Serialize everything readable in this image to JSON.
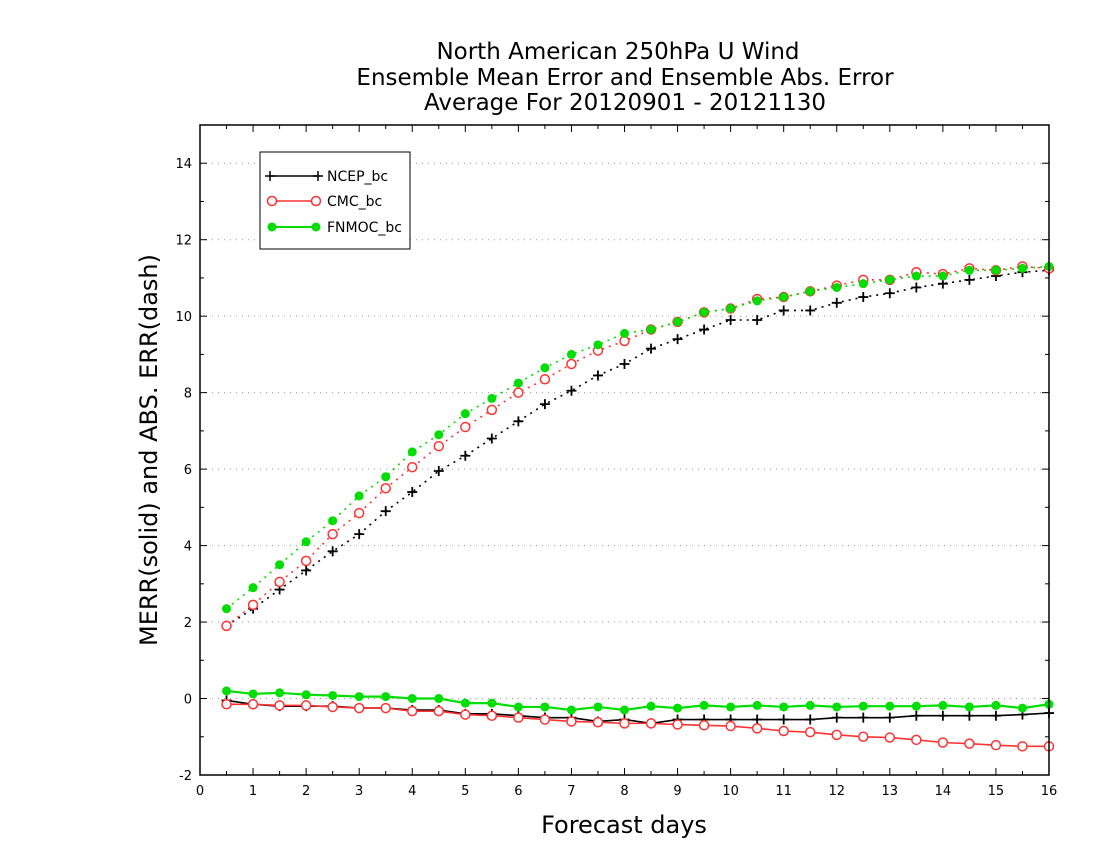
{
  "chart_data": {
    "type": "line",
    "title": [
      "North American 250hPa U Wind",
      "Ensemble Mean Error and Ensemble Abs. Error",
      "Average For 20120901 - 20121130"
    ],
    "xlabel": "Forecast days",
    "ylabel": "MERR(solid) and ABS. ERR(dash)",
    "xlim": [
      0,
      16
    ],
    "ylim": [
      -2,
      15
    ],
    "xticks": [
      "0",
      "1",
      "2",
      "3",
      "4",
      "5",
      "6",
      "7",
      "8",
      "9",
      "10",
      "11",
      "12",
      "13",
      "14",
      "15",
      "16"
    ],
    "yticks": [
      "-2",
      "0",
      "2",
      "4",
      "6",
      "8",
      "10",
      "12",
      "14"
    ],
    "grid": true,
    "legend_position": "top-left",
    "x": [
      0.5,
      1,
      1.5,
      2,
      2.5,
      3,
      3.5,
      4,
      4.5,
      5,
      5.5,
      6,
      6.5,
      7,
      7.5,
      8,
      8.5,
      9,
      9.5,
      10,
      10.5,
      11,
      11.5,
      12,
      12.5,
      13,
      13.5,
      14,
      14.5,
      15,
      15.5,
      16
    ],
    "series": [
      {
        "name": "NCEP_bc",
        "color": "#000000",
        "marker": "plus",
        "merr": [
          -0.05,
          -0.15,
          -0.2,
          -0.2,
          -0.2,
          -0.25,
          -0.25,
          -0.3,
          -0.3,
          -0.4,
          -0.4,
          -0.45,
          -0.5,
          -0.5,
          -0.6,
          -0.55,
          -0.65,
          -0.55,
          -0.55,
          -0.55,
          -0.55,
          -0.55,
          -0.55,
          -0.5,
          -0.5,
          -0.5,
          -0.45,
          -0.45,
          -0.45,
          -0.45,
          -0.42,
          -0.38
        ],
        "abs_err": [
          1.9,
          2.35,
          2.85,
          3.35,
          3.85,
          4.3,
          4.9,
          5.4,
          5.95,
          6.35,
          6.8,
          7.25,
          7.7,
          8.05,
          8.45,
          8.75,
          9.15,
          9.4,
          9.65,
          9.9,
          9.9,
          10.15,
          10.15,
          10.35,
          10.5,
          10.6,
          10.75,
          10.85,
          10.95,
          11.05,
          11.15,
          11.2
        ]
      },
      {
        "name": "CMC_bc",
        "color": "#ff3333",
        "marker": "open-circle",
        "merr": [
          -0.15,
          -0.15,
          -0.18,
          -0.18,
          -0.22,
          -0.25,
          -0.25,
          -0.33,
          -0.33,
          -0.42,
          -0.45,
          -0.5,
          -0.55,
          -0.6,
          -0.62,
          -0.65,
          -0.65,
          -0.68,
          -0.7,
          -0.72,
          -0.78,
          -0.85,
          -0.88,
          -0.95,
          -1.0,
          -1.02,
          -1.08,
          -1.15,
          -1.18,
          -1.22,
          -1.25,
          -1.25
        ],
        "abs_err": [
          1.9,
          2.45,
          3.05,
          3.6,
          4.3,
          4.85,
          5.5,
          6.05,
          6.6,
          7.1,
          7.55,
          8.0,
          8.35,
          8.75,
          9.1,
          9.35,
          9.65,
          9.85,
          10.1,
          10.2,
          10.45,
          10.5,
          10.65,
          10.8,
          10.95,
          10.95,
          11.15,
          11.1,
          11.25,
          11.2,
          11.3,
          11.25
        ]
      },
      {
        "name": "FNMOC_bc",
        "color": "#00dd00",
        "marker": "filled-circle",
        "merr": [
          0.2,
          0.12,
          0.15,
          0.1,
          0.08,
          0.05,
          0.05,
          0.0,
          0.0,
          -0.12,
          -0.12,
          -0.22,
          -0.22,
          -0.3,
          -0.22,
          -0.3,
          -0.2,
          -0.25,
          -0.18,
          -0.22,
          -0.18,
          -0.22,
          -0.18,
          -0.22,
          -0.2,
          -0.2,
          -0.2,
          -0.18,
          -0.22,
          -0.18,
          -0.25,
          -0.15
        ],
        "abs_err": [
          2.35,
          2.9,
          3.5,
          4.1,
          4.65,
          5.3,
          5.8,
          6.45,
          6.9,
          7.45,
          7.85,
          8.25,
          8.65,
          9.0,
          9.25,
          9.55,
          9.65,
          9.85,
          10.1,
          10.2,
          10.4,
          10.5,
          10.65,
          10.75,
          10.85,
          10.95,
          11.05,
          11.05,
          11.2,
          11.2,
          11.25,
          11.3
        ]
      }
    ]
  }
}
